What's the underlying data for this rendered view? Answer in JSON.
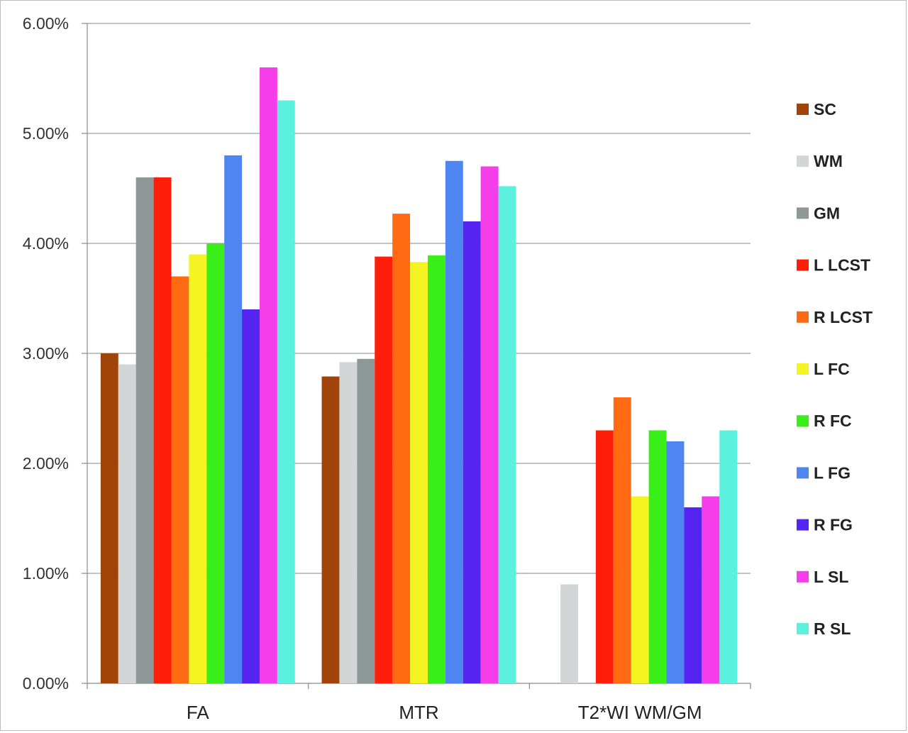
{
  "chart_data": {
    "type": "bar",
    "categories": [
      "FA",
      "MTR",
      "T2*WI WM/GM"
    ],
    "yticks": [
      "0.00%",
      "1.00%",
      "2.00%",
      "3.00%",
      "4.00%",
      "5.00%",
      "6.00%"
    ],
    "ylim": [
      0,
      6
    ],
    "grid": true,
    "legend_position": "right",
    "series": [
      {
        "name": "SC",
        "color": "#A0440A",
        "values": [
          3.0,
          2.79,
          null
        ]
      },
      {
        "name": "WM",
        "color": "#D3D6D6",
        "values": [
          2.9,
          2.92,
          0.9
        ]
      },
      {
        "name": "GM",
        "color": "#8F9898",
        "values": [
          4.6,
          2.95,
          null
        ]
      },
      {
        "name": "L LCST",
        "color": "#FF1E0A",
        "values": [
          4.6,
          3.88,
          2.3
        ]
      },
      {
        "name": "R LCST",
        "color": "#FF6A12",
        "values": [
          3.7,
          4.27,
          2.6
        ]
      },
      {
        "name": "L FC",
        "color": "#F4F422",
        "values": [
          3.9,
          3.83,
          1.7
        ]
      },
      {
        "name": "R FC",
        "color": "#3AEE1A",
        "values": [
          4.0,
          3.89,
          2.3
        ]
      },
      {
        "name": "L FG",
        "color": "#4F85F0",
        "values": [
          4.8,
          4.75,
          2.2
        ]
      },
      {
        "name": "R FG",
        "color": "#5624F0",
        "values": [
          3.4,
          4.2,
          1.6
        ]
      },
      {
        "name": "L SL",
        "color": "#F53DEA",
        "values": [
          5.6,
          4.7,
          1.7
        ]
      },
      {
        "name": "R SL",
        "color": "#5CF0DE",
        "values": [
          5.3,
          4.52,
          2.3
        ]
      }
    ]
  }
}
